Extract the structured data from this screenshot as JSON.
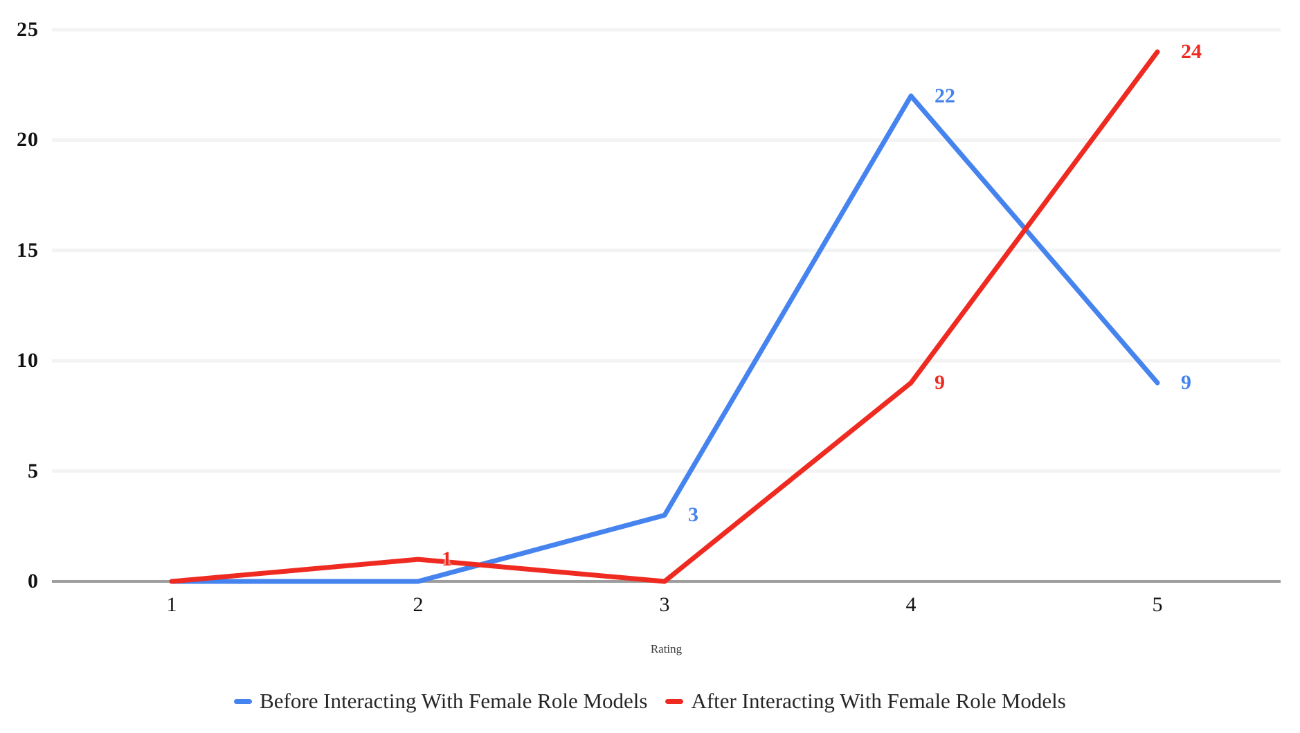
{
  "chart_data": {
    "type": "line",
    "title": "",
    "xlabel": "Rating",
    "ylabel": "",
    "categories": [
      1,
      2,
      3,
      4,
      5
    ],
    "x_tick_labels": [
      "1",
      "2",
      "3",
      "4",
      "5"
    ],
    "y_tick_values": [
      0,
      5,
      10,
      15,
      20,
      25
    ],
    "y_tick_labels": [
      "0",
      "5",
      "10",
      "15",
      "20",
      "25"
    ],
    "ylim": [
      0,
      25
    ],
    "grid": true,
    "legend_position": "bottom",
    "axis_color": "#9e9e9e",
    "grid_color": "#f3f3f3",
    "tick_label_color": "#111111",
    "series": [
      {
        "name": "Before Interacting With Female Role Models",
        "color": "#4583ee",
        "values": [
          0,
          0,
          3,
          22,
          9
        ],
        "point_labels": [
          {
            "x": 3,
            "text": "3"
          },
          {
            "x": 4,
            "text": "22"
          },
          {
            "x": 5,
            "text": "9"
          }
        ]
      },
      {
        "name": "After Interacting With Female Role Models",
        "color": "#ee2a21",
        "values": [
          0,
          1,
          0,
          9,
          24
        ],
        "point_labels": [
          {
            "x": 2,
            "text": "1"
          },
          {
            "x": 4,
            "text": "9"
          },
          {
            "x": 5,
            "text": "24"
          }
        ]
      }
    ]
  }
}
